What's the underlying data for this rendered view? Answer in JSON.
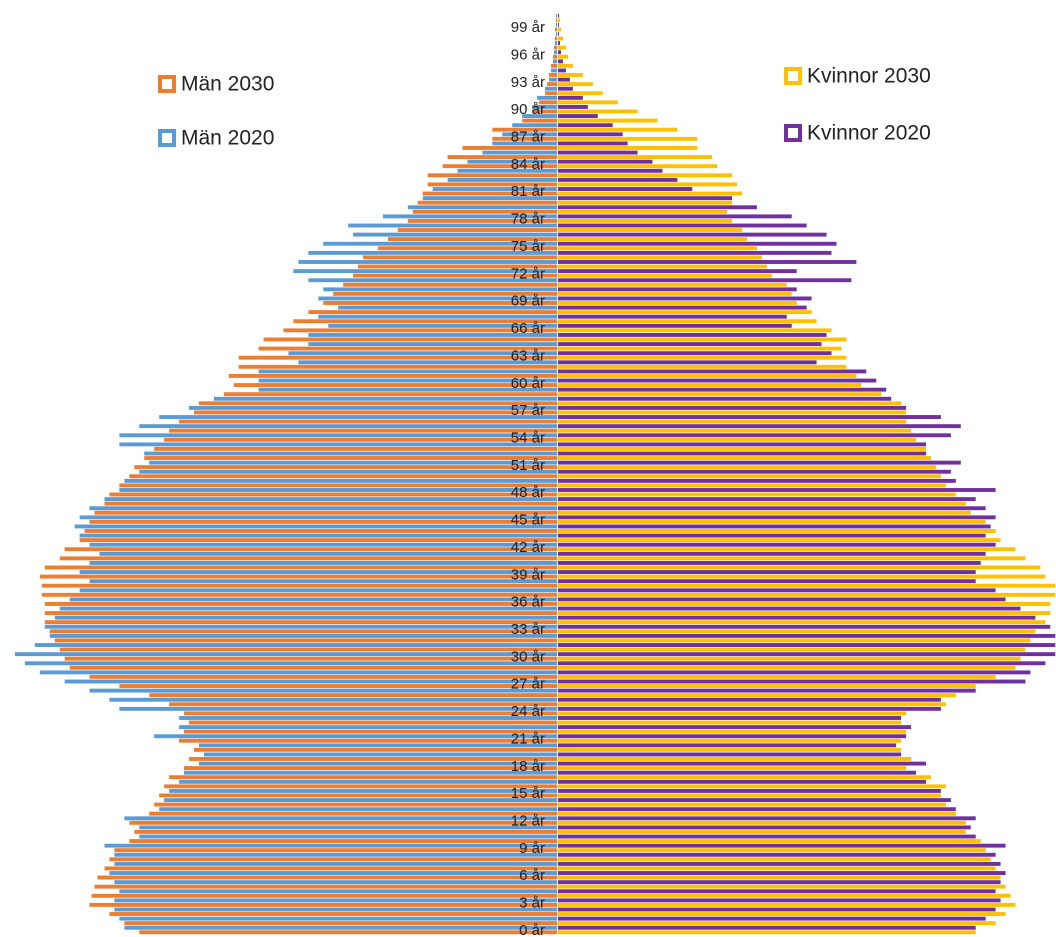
{
  "chart_data": {
    "type": "pyramid",
    "categories": [
      "0 år",
      null,
      null,
      "3 år",
      null,
      null,
      "6 år",
      null,
      null,
      "9 år",
      null,
      null,
      "12 år",
      null,
      null,
      "15 år",
      null,
      null,
      "18 år",
      null,
      null,
      "21 år",
      null,
      null,
      "24 år",
      null,
      null,
      "27 år",
      null,
      null,
      "30 år",
      null,
      null,
      "33 år",
      null,
      null,
      "36 år",
      null,
      null,
      "39 år",
      null,
      null,
      "42 år",
      null,
      null,
      "45 år",
      null,
      null,
      "48 år",
      null,
      null,
      "51 år",
      null,
      null,
      "54 år",
      null,
      null,
      "57 år",
      null,
      null,
      "60 år",
      null,
      null,
      "63 år",
      null,
      null,
      "66 år",
      null,
      null,
      "69 år",
      null,
      null,
      "72 år",
      null,
      null,
      "75 år",
      null,
      null,
      "78 år",
      null,
      null,
      "81 år",
      null,
      null,
      "84 år",
      null,
      null,
      "87 år",
      null,
      null,
      "90 år",
      null,
      null,
      "93 år",
      null,
      null,
      "96 år",
      null,
      null,
      "99 år",
      null
    ],
    "xlim": [
      0,
      550
    ],
    "series": [
      {
        "name": "Män 2030",
        "color": "#ed7d31",
        "side": "left",
        "values": [
          420,
          435,
          450,
          470,
          468,
          465,
          462,
          455,
          450,
          445,
          430,
          425,
          430,
          410,
          405,
          400,
          395,
          390,
          375,
          370,
          365,
          380,
          375,
          370,
          375,
          390,
          410,
          440,
          470,
          490,
          495,
          500,
          505,
          510,
          515,
          515,
          515,
          518,
          518,
          520,
          515,
          500,
          495,
          480,
          475,
          470,
          465,
          455,
          450,
          440,
          430,
          425,
          415,
          405,
          395,
          390,
          380,
          365,
          360,
          335,
          325,
          330,
          320,
          320,
          300,
          295,
          275,
          265,
          250,
          235,
          225,
          215,
          205,
          200,
          195,
          180,
          170,
          160,
          150,
          145,
          140,
          135,
          130,
          130,
          115,
          110,
          95,
          65,
          65,
          35,
          25,
          18,
          12,
          10,
          8,
          6,
          4,
          3,
          2,
          2,
          1
        ]
      },
      {
        "name": "Män 2020",
        "color": "#5b9bd5",
        "side": "left",
        "values": [
          435,
          440,
          445,
          445,
          440,
          445,
          450,
          445,
          445,
          455,
          420,
          420,
          435,
          400,
          395,
          390,
          380,
          375,
          360,
          355,
          360,
          405,
          380,
          380,
          440,
          450,
          470,
          495,
          520,
          535,
          545,
          525,
          510,
          515,
          505,
          500,
          490,
          480,
          470,
          480,
          470,
          460,
          470,
          480,
          485,
          480,
          470,
          455,
          440,
          435,
          420,
          410,
          415,
          440,
          440,
          420,
          400,
          370,
          345,
          300,
          300,
          300,
          260,
          270,
          250,
          250,
          230,
          240,
          220,
          240,
          235,
          250,
          265,
          260,
          250,
          235,
          205,
          210,
          175,
          150,
          135,
          125,
          110,
          100,
          90,
          75,
          65,
          55,
          45,
          35,
          25,
          20,
          12,
          8,
          6,
          4,
          3,
          2,
          1,
          1,
          1
        ]
      },
      {
        "name": "Kvinnor 2030",
        "color": "#ffc000",
        "side": "right",
        "values": [
          420,
          440,
          450,
          460,
          455,
          450,
          445,
          440,
          435,
          430,
          425,
          410,
          410,
          400,
          390,
          385,
          390,
          375,
          350,
          355,
          345,
          345,
          350,
          345,
          350,
          390,
          400,
          420,
          440,
          460,
          465,
          470,
          475,
          480,
          490,
          495,
          495,
          500,
          500,
          490,
          485,
          470,
          460,
          445,
          440,
          430,
          415,
          410,
          400,
          390,
          385,
          380,
          375,
          370,
          360,
          355,
          350,
          350,
          345,
          325,
          305,
          300,
          290,
          290,
          285,
          290,
          275,
          260,
          255,
          240,
          235,
          230,
          215,
          210,
          205,
          200,
          190,
          185,
          175,
          170,
          175,
          185,
          180,
          175,
          160,
          155,
          140,
          140,
          120,
          100,
          80,
          60,
          45,
          35,
          25,
          15,
          10,
          8,
          5,
          3,
          2
        ]
      },
      {
        "name": "Kvinnor 2020",
        "color": "#7030a0",
        "side": "right",
        "values": [
          420,
          430,
          440,
          445,
          440,
          445,
          450,
          445,
          440,
          450,
          420,
          415,
          420,
          400,
          395,
          385,
          370,
          360,
          370,
          345,
          340,
          350,
          355,
          345,
          385,
          385,
          420,
          470,
          475,
          490,
          500,
          500,
          500,
          495,
          480,
          465,
          450,
          440,
          420,
          420,
          425,
          430,
          440,
          430,
          435,
          440,
          430,
          420,
          440,
          400,
          395,
          405,
          370,
          370,
          395,
          405,
          385,
          350,
          335,
          330,
          320,
          310,
          260,
          275,
          265,
          270,
          235,
          230,
          250,
          255,
          240,
          295,
          240,
          300,
          275,
          280,
          270,
          250,
          235,
          200,
          175,
          135,
          120,
          105,
          95,
          80,
          70,
          65,
          55,
          40,
          30,
          25,
          15,
          12,
          8,
          5,
          3,
          2,
          1,
          1,
          1
        ]
      }
    ]
  }
}
